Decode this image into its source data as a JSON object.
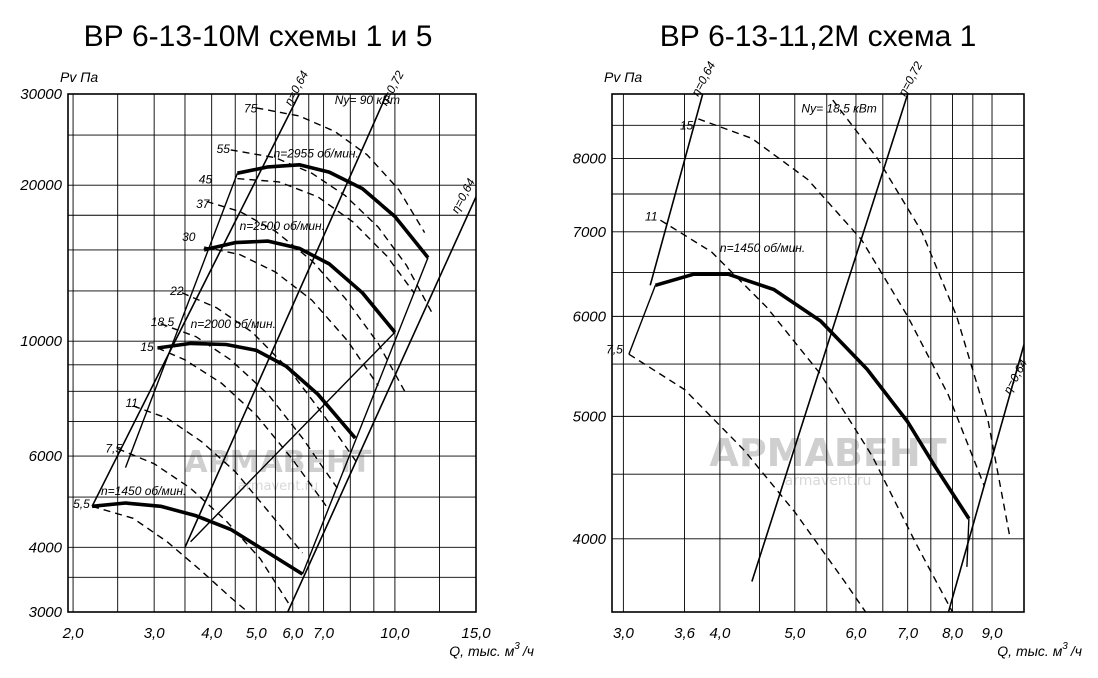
{
  "watermark": {
    "brand": "АРМАВЕНТ",
    "site": "armavent.ru"
  },
  "chart_data": [
    {
      "type": "line",
      "title": "ВР 6-13-10М  схемы 1 и 5",
      "ylabel": "Pv Па",
      "xlabel": "Q, тыс. м³/ч",
      "xlabel_main": "Q, тыс. м",
      "xlabel_sup": "3",
      "xlabel_tail": "/ч",
      "x_scale": "log",
      "y_scale": "log",
      "xlim": [
        1.95,
        15.0
      ],
      "ylim": [
        3000,
        30000
      ],
      "x_ticks": [
        2.0,
        3.0,
        4.0,
        5.0,
        6.0,
        7.0,
        10.0,
        15.0
      ],
      "x_tick_labels": [
        "2,0",
        "3,0",
        "4,0",
        "5,0",
        "6,0",
        "7,0",
        "10,0",
        "15,0"
      ],
      "y_ticks": [
        3000,
        4000,
        6000,
        10000,
        20000,
        30000
      ],
      "y_tick_labels": [
        "3000",
        "4000",
        "6000",
        "10000",
        "20000",
        "30000"
      ],
      "x_grid": [
        2.0,
        2.5,
        3.0,
        3.5,
        4.0,
        4.5,
        5.0,
        5.5,
        6.0,
        6.5,
        7.0,
        8.0,
        9.0,
        10.0,
        12.5,
        15.0
      ],
      "y_grid": [
        3000,
        3500,
        4000,
        5000,
        6000,
        7000,
        8000,
        9000,
        10000,
        12500,
        15000,
        17500,
        20000,
        25000,
        30000
      ],
      "grid": true,
      "efficiency_label_prefix": "η=",
      "speed_curves": [
        {
          "name": "n=2955 об/мин.",
          "label_at": [
            5.45,
            22600
          ],
          "points": [
            [
              4.55,
              21100
            ],
            [
              5.3,
              21700
            ],
            [
              6.2,
              21900
            ],
            [
              7.2,
              21200
            ],
            [
              8.5,
              19700
            ],
            [
              10.0,
              17400
            ],
            [
              11.8,
              14500
            ]
          ]
        },
        {
          "name": "n=2500 об/мин.",
          "label_at": [
            4.6,
            16400
          ],
          "points": [
            [
              3.85,
              15000
            ],
            [
              4.5,
              15500
            ],
            [
              5.3,
              15600
            ],
            [
              6.2,
              15100
            ],
            [
              7.2,
              14100
            ],
            [
              8.5,
              12400
            ],
            [
              10.0,
              10400
            ]
          ]
        },
        {
          "name": "n=2000 об/мин.",
          "label_at": [
            3.6,
            10600
          ],
          "points": [
            [
              3.05,
              9700
            ],
            [
              3.6,
              9900
            ],
            [
              4.3,
              9850
            ],
            [
              5.0,
              9600
            ],
            [
              5.8,
              8950
            ],
            [
              6.8,
              7900
            ],
            [
              8.2,
              6500
            ]
          ]
        },
        {
          "name": "n=1450 об/мин.",
          "label_at": [
            2.3,
            5050
          ],
          "points": [
            [
              2.2,
              4800
            ],
            [
              2.6,
              4870
            ],
            [
              3.1,
              4800
            ],
            [
              3.7,
              4600
            ],
            [
              4.4,
              4330
            ],
            [
              5.2,
              3950
            ],
            [
              6.3,
              3550
            ]
          ]
        }
      ],
      "power_curves": [
        {
          "name": "75",
          "label_at": [
            4.7,
            28100
          ],
          "points": [
            [
              5.0,
              28200
            ],
            [
              6.2,
              27200
            ],
            [
              7.4,
              25400
            ],
            [
              8.7,
              22900
            ],
            [
              10.2,
              19600
            ],
            [
              11.6,
              16200
            ]
          ]
        },
        {
          "name": "55",
          "label_at": [
            4.1,
            23500
          ],
          "points": [
            [
              4.4,
              23400
            ],
            [
              5.5,
              22600
            ],
            [
              6.6,
              21100
            ],
            [
              7.8,
              19100
            ],
            [
              9.2,
              16600
            ],
            [
              10.6,
              14000
            ],
            [
              12.0,
              11400
            ]
          ]
        },
        {
          "name": "45",
          "label_at": [
            3.75,
            20500
          ],
          "points": [
            [
              4.55,
              20600
            ],
            [
              5.6,
              20300
            ],
            [
              6.8,
              19000
            ],
            [
              8.1,
              17000
            ],
            [
              9.6,
              14600
            ],
            [
              11.0,
              12400
            ]
          ]
        },
        {
          "name": "37",
          "label_at": [
            3.7,
            18400
          ],
          "points": [
            [
              3.9,
              18600
            ],
            [
              4.6,
              17800
            ],
            [
              5.5,
              16300
            ],
            [
              6.6,
              14300
            ],
            [
              7.8,
              12100
            ],
            [
              9.2,
              9900
            ],
            [
              10.5,
              8000
            ]
          ]
        },
        {
          "name": "30",
          "label_at": [
            3.45,
            15900
          ],
          "points": [
            [
              3.85,
              15200
            ],
            [
              4.6,
              14700
            ],
            [
              5.5,
              13600
            ],
            [
              6.6,
              12000
            ],
            [
              7.9,
              10000
            ],
            [
              9.2,
              8200
            ]
          ]
        },
        {
          "name": "22",
          "label_at": [
            3.25,
            12500
          ],
          "points": [
            [
              3.45,
              12400
            ],
            [
              4.1,
              11600
            ],
            [
              4.9,
              10400
            ],
            [
              5.9,
              8800
            ],
            [
              7.0,
              7200
            ],
            [
              8.3,
              5800
            ]
          ]
        },
        {
          "name": "18,5",
          "label_at": [
            2.95,
            10900
          ],
          "points": [
            [
              3.1,
              10800
            ],
            [
              3.7,
              10200
            ],
            [
              4.4,
              9200
            ],
            [
              5.3,
              7900
            ],
            [
              6.3,
              6500
            ],
            [
              7.5,
              5200
            ]
          ]
        },
        {
          "name": "15",
          "label_at": [
            2.8,
            9750
          ],
          "points": [
            [
              3.05,
              9700
            ],
            [
              3.5,
              9200
            ],
            [
              4.2,
              8300
            ],
            [
              5.0,
              7200
            ],
            [
              6.0,
              5900
            ],
            [
              7.1,
              4800
            ]
          ]
        },
        {
          "name": "11",
          "label_at": [
            2.6,
            7600
          ],
          "points": [
            [
              2.7,
              7500
            ],
            [
              3.2,
              7100
            ],
            [
              3.8,
              6400
            ],
            [
              4.5,
              5600
            ],
            [
              5.3,
              4700
            ],
            [
              6.3,
              3900
            ]
          ]
        },
        {
          "name": "7,5",
          "label_at": [
            2.35,
            6200
          ],
          "points": [
            [
              2.5,
              6200
            ],
            [
              3.0,
              5800
            ],
            [
              3.6,
              5200
            ],
            [
              4.3,
              4500
            ],
            [
              5.1,
              3800
            ],
            [
              5.9,
              3100
            ]
          ]
        },
        {
          "name": "5,5",
          "label_at": [
            2.0,
            4850
          ],
          "points": [
            [
              2.2,
              4800
            ],
            [
              2.7,
              4550
            ],
            [
              3.2,
              4100
            ],
            [
              3.8,
              3600
            ],
            [
              4.4,
              3200
            ],
            [
              4.9,
              2950
            ]
          ]
        }
      ],
      "power_unit_label": "Ny= 90 кВт",
      "power_unit_at": [
        7.4,
        28700
      ],
      "efficiency_lines": [
        {
          "name": "0,64",
          "label_at": [
            5.95,
            28400
          ],
          "points": [
            [
              2.2,
              4800
            ],
            [
              6.2,
              30000
            ]
          ]
        },
        {
          "name": "0,72",
          "label_at": [
            9.6,
            28400
          ],
          "points": [
            [
              3.5,
              4000
            ],
            [
              9.6,
              30000
            ]
          ]
        },
        {
          "name": "0,64",
          "label_at": [
            13.7,
            17600
          ],
          "points": [
            [
              5.8,
              2950
            ],
            [
              15.0,
              19000
            ]
          ]
        }
      ],
      "n_range_lines": [
        {
          "points": [
            [
              2.6,
              5700
            ],
            [
              4.55,
              21100
            ]
          ]
        },
        {
          "points": [
            [
              3.6,
              4100
            ],
            [
              10.0,
              10400
            ]
          ]
        },
        {
          "points": [
            [
              6.3,
              3550
            ],
            [
              11.8,
              14500
            ]
          ]
        }
      ]
    },
    {
      "type": "line",
      "title": "ВР 6-13-11,2М  схема 1",
      "ylabel": "Pv Па",
      "xlabel": "Q, тыс. м³/ч",
      "xlabel_main": "Q, тыс. м",
      "xlabel_sup": "3",
      "xlabel_tail": "/ч",
      "x_scale": "log",
      "y_scale": "log",
      "xlim": [
        2.9,
        9.9
      ],
      "ylim": [
        3500,
        9000
      ],
      "x_ticks": [
        3.0,
        3.6,
        4.0,
        5.0,
        6.0,
        7.0,
        8.0,
        9.0
      ],
      "x_tick_labels": [
        "3,0",
        "3,6",
        "4,0",
        "5,0",
        "6,0",
        "7,0",
        "8,0",
        "9,0"
      ],
      "y_ticks": [
        4000,
        5000,
        6000,
        7000,
        8000
      ],
      "y_tick_labels": [
        "4000",
        "5000",
        "6000",
        "7000",
        "8000"
      ],
      "x_grid": [
        3.0,
        3.6,
        4.0,
        4.5,
        5.0,
        5.5,
        6.0,
        6.5,
        7.0,
        7.5,
        8.0,
        8.5,
        9.0
      ],
      "y_grid": [
        4000,
        4500,
        5000,
        5500,
        6000,
        6500,
        7000,
        7500,
        8000,
        8500
      ],
      "grid": true,
      "efficiency_label_prefix": "η=",
      "speed_curves": [
        {
          "name": "n=1450 об/мин.",
          "label_at": [
            4.0,
            6750
          ],
          "points": [
            [
              3.3,
              6350
            ],
            [
              3.7,
              6480
            ],
            [
              4.1,
              6480
            ],
            [
              4.7,
              6300
            ],
            [
              5.4,
              5950
            ],
            [
              6.2,
              5450
            ],
            [
              7.0,
              4950
            ],
            [
              7.6,
              4560
            ],
            [
              8.4,
              4150
            ]
          ]
        }
      ],
      "power_curves": [
        {
          "name": "15",
          "label_at": [
            3.55,
            8500
          ],
          "points": [
            [
              3.75,
              8600
            ],
            [
              4.4,
              8300
            ],
            [
              5.2,
              7700
            ],
            [
              6.1,
              6900
            ],
            [
              7.0,
              6000
            ],
            [
              7.9,
              5200
            ],
            [
              8.8,
              4400
            ]
          ]
        },
        {
          "name": "11",
          "label_at": [
            3.2,
            7200
          ],
          "points": [
            [
              3.35,
              7150
            ],
            [
              3.9,
              6750
            ],
            [
              4.6,
              6100
            ],
            [
              5.4,
              5400
            ],
            [
              6.3,
              4650
            ],
            [
              7.2,
              3950
            ],
            [
              8.1,
              3450
            ]
          ]
        },
        {
          "name": "7,5",
          "label_at": [
            2.85,
            5650
          ],
          "points": [
            [
              3.05,
              5600
            ],
            [
              3.6,
              5250
            ],
            [
              4.3,
              4700
            ],
            [
              5.0,
              4200
            ],
            [
              5.8,
              3700
            ],
            [
              6.6,
              3300
            ]
          ]
        }
      ],
      "power_unit_label": "Ny= 18,5 кВт",
      "power_unit_at": [
        5.1,
        8700
      ],
      "extra_dashed": [
        {
          "points": [
            [
              5.6,
              8900
            ],
            [
              6.4,
              8000
            ],
            [
              7.3,
              7000
            ],
            [
              8.1,
              6000
            ],
            [
              8.9,
              4950
            ],
            [
              9.5,
              4000
            ]
          ]
        }
      ],
      "efficiency_lines": [
        {
          "name": "0,64",
          "label_at": [
            3.75,
            8950
          ],
          "points": [
            [
              3.25,
              6350
            ],
            [
              3.8,
              9000
            ]
          ]
        },
        {
          "name": "0,72",
          "label_at": [
            6.95,
            8950
          ],
          "points": [
            [
              4.4,
              3700
            ],
            [
              7.0,
              9000
            ]
          ]
        },
        {
          "name": "0,64",
          "label_at": [
            9.5,
            5200
          ],
          "points": [
            [
              7.8,
              3400
            ],
            [
              9.9,
              5700
            ]
          ]
        }
      ],
      "n_range_lines": [
        {
          "points": [
            [
              3.05,
              5600
            ],
            [
              3.3,
              6350
            ]
          ]
        },
        {
          "points": [
            [
              8.35,
              3800
            ],
            [
              8.4,
              4150
            ]
          ]
        }
      ]
    }
  ]
}
